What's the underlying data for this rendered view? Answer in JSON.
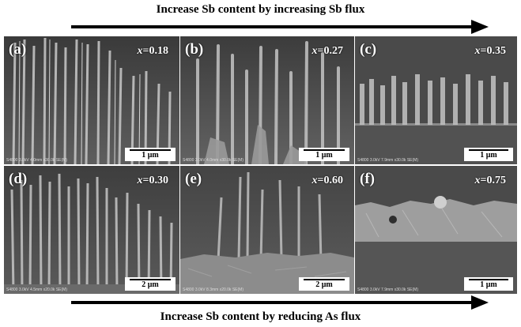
{
  "figure": {
    "top_caption": "Increase Sb content by increasing Sb flux",
    "bottom_caption": "Increase Sb content by reducing As flux",
    "x_symbol": "x",
    "panels": [
      {
        "label": "(a)",
        "x_value": "0.18",
        "scale_bar": "1 μm",
        "meta": "S4800 3.0kV 4.0mm x30.0k SE(M)"
      },
      {
        "label": "(b)",
        "x_value": "0.27",
        "scale_bar": "1 μm",
        "meta": "S4800 3.0kV 4.0mm x30.0k SE(M)"
      },
      {
        "label": "(c)",
        "x_value": "0.35",
        "scale_bar": "1 μm",
        "meta": "S4800 3.0kV 7.9mm x30.0k SE(M)"
      },
      {
        "label": "(d)",
        "x_value": "0.30",
        "scale_bar": "2 μm",
        "meta": "S4800 3.0kV 4.5mm x20.0k SE(M)"
      },
      {
        "label": "(e)",
        "x_value": "0.60",
        "scale_bar": "2 μm",
        "meta": "S4800 3.0kV 8.3mm x20.0k SE(M)"
      },
      {
        "label": "(f)",
        "x_value": "0.75",
        "scale_bar": "1 μm",
        "meta": "S4800 3.0kV 7.9mm x30.0k SE(M)"
      }
    ]
  }
}
